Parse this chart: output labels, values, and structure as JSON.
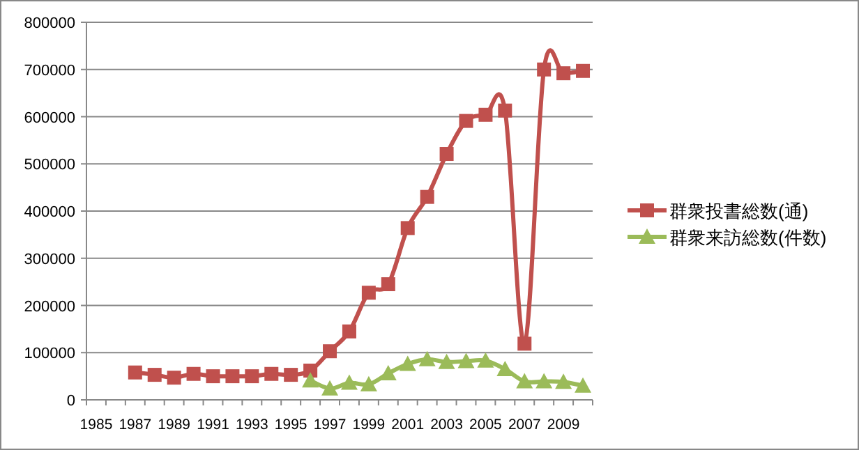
{
  "chart_data": {
    "type": "line",
    "categories": [
      "1985",
      null,
      "1987",
      null,
      "1989",
      null,
      "1991",
      null,
      "1993",
      null,
      "1995",
      null,
      "1997",
      null,
      "1999",
      null,
      "2001",
      null,
      "2003",
      null,
      "2005",
      null,
      "2007",
      null,
      "2009",
      null
    ],
    "series": [
      {
        "name": "群衆投書総数(通)",
        "color": "#c0504d",
        "marker": "square",
        "values": [
          null,
          null,
          58000,
          53000,
          47000,
          55000,
          50000,
          50000,
          50000,
          55000,
          53000,
          62000,
          103000,
          145000,
          227000,
          245000,
          364000,
          430000,
          521000,
          591000,
          604000,
          613000,
          119000,
          700000,
          692000,
          697000
        ]
      },
      {
        "name": "群衆来訪総数(件数)",
        "color": "#9bbb59",
        "marker": "triangle",
        "values": [
          null,
          null,
          null,
          null,
          null,
          null,
          null,
          null,
          null,
          null,
          null,
          41000,
          24000,
          36000,
          33000,
          56000,
          76000,
          86000,
          80000,
          82000,
          83000,
          65000,
          39000,
          39000,
          38000,
          30000
        ]
      }
    ],
    "ylim": [
      0,
      800000
    ],
    "yticks": [
      0,
      100000,
      200000,
      300000,
      400000,
      500000,
      600000,
      700000,
      800000
    ],
    "grid": "y",
    "legend": "right",
    "line_style": "solid"
  }
}
